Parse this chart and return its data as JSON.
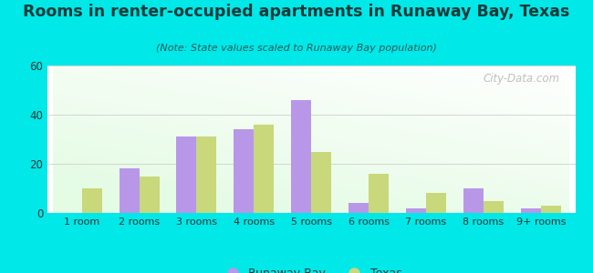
{
  "title": "Rooms in renter-occupied apartments in Runaway Bay, Texas",
  "subtitle": "(Note: State values scaled to Runaway Bay population)",
  "categories": [
    "1 room",
    "2 rooms",
    "3 rooms",
    "4 rooms",
    "5 rooms",
    "6 rooms",
    "7 rooms",
    "8 rooms",
    "9+ rooms"
  ],
  "runaway_bay": [
    0,
    18,
    31,
    34,
    46,
    4,
    2,
    10,
    2
  ],
  "texas": [
    10,
    15,
    31,
    36,
    25,
    16,
    8,
    5,
    3
  ],
  "runaway_color": "#b897e8",
  "texas_color": "#c8d87a",
  "bg_outer": "#00e8e8",
  "ylim": [
    0,
    60
  ],
  "yticks": [
    0,
    20,
    40,
    60
  ],
  "watermark": "City-Data.com",
  "legend_runaway": "Runaway Bay",
  "legend_texas": "Texas",
  "bar_width": 0.35,
  "title_color": "#1a3a3a",
  "subtitle_color": "#2a5a5a"
}
